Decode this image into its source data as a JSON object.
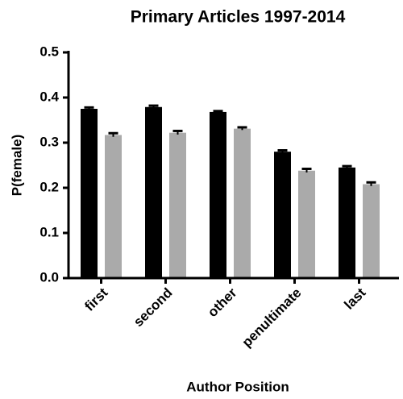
{
  "chart_data": {
    "type": "bar",
    "title": "Primary Articles 1997-2014",
    "x_label": "Author Position",
    "y_label": "P(female)",
    "categories": [
      "first",
      "second",
      "other",
      "penultimate",
      "last"
    ],
    "series": [
      {
        "color": "#000000",
        "values": [
          0.375,
          0.379,
          0.368,
          0.28,
          0.245
        ],
        "errors": [
          0.003,
          0.003,
          0.002,
          0.003,
          0.003
        ]
      },
      {
        "color": "#aaaaaa",
        "values": [
          0.317,
          0.322,
          0.331,
          0.238,
          0.208
        ],
        "errors": [
          0.004,
          0.004,
          0.003,
          0.004,
          0.004
        ]
      }
    ],
    "ylim": [
      0,
      0.5
    ],
    "yticks": [
      {
        "value": 0,
        "label": "0.0"
      },
      0.1,
      0.2,
      0.3,
      0.4,
      0.5
    ],
    "grid": false
  }
}
